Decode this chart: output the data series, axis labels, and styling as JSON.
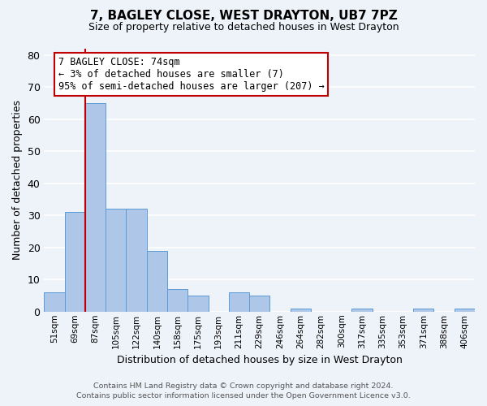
{
  "title": "7, BAGLEY CLOSE, WEST DRAYTON, UB7 7PZ",
  "subtitle": "Size of property relative to detached houses in West Drayton",
  "xlabel": "Distribution of detached houses by size in West Drayton",
  "ylabel": "Number of detached properties",
  "bin_labels": [
    "51sqm",
    "69sqm",
    "87sqm",
    "105sqm",
    "122sqm",
    "140sqm",
    "158sqm",
    "175sqm",
    "193sqm",
    "211sqm",
    "229sqm",
    "246sqm",
    "264sqm",
    "282sqm",
    "300sqm",
    "317sqm",
    "335sqm",
    "353sqm",
    "371sqm",
    "388sqm",
    "406sqm"
  ],
  "bar_heights": [
    6,
    31,
    65,
    32,
    32,
    19,
    7,
    5,
    0,
    6,
    5,
    0,
    1,
    0,
    0,
    1,
    0,
    0,
    1,
    0,
    1
  ],
  "bar_color": "#aec6e8",
  "bar_edge_color": "#5b9bd5",
  "vline_color": "#c00000",
  "annotation_line1": "7 BAGLEY CLOSE: 74sqm",
  "annotation_line2": "← 3% of detached houses are smaller (7)",
  "annotation_line3": "95% of semi-detached houses are larger (207) →",
  "annotation_box_color": "#ffffff",
  "annotation_box_edge": "#c00000",
  "ylim": [
    0,
    82
  ],
  "yticks": [
    0,
    10,
    20,
    30,
    40,
    50,
    60,
    70,
    80
  ],
  "footer_line1": "Contains HM Land Registry data © Crown copyright and database right 2024.",
  "footer_line2": "Contains public sector information licensed under the Open Government Licence v3.0.",
  "bg_color": "#eef2f9",
  "grid_color": "#ffffff",
  "title_fontsize": 11,
  "subtitle_fontsize": 9,
  "ylabel_fontsize": 9,
  "xlabel_fontsize": 9,
  "tick_fontsize": 7.5,
  "annotation_fontsize": 8.5,
  "footer_fontsize": 6.8
}
